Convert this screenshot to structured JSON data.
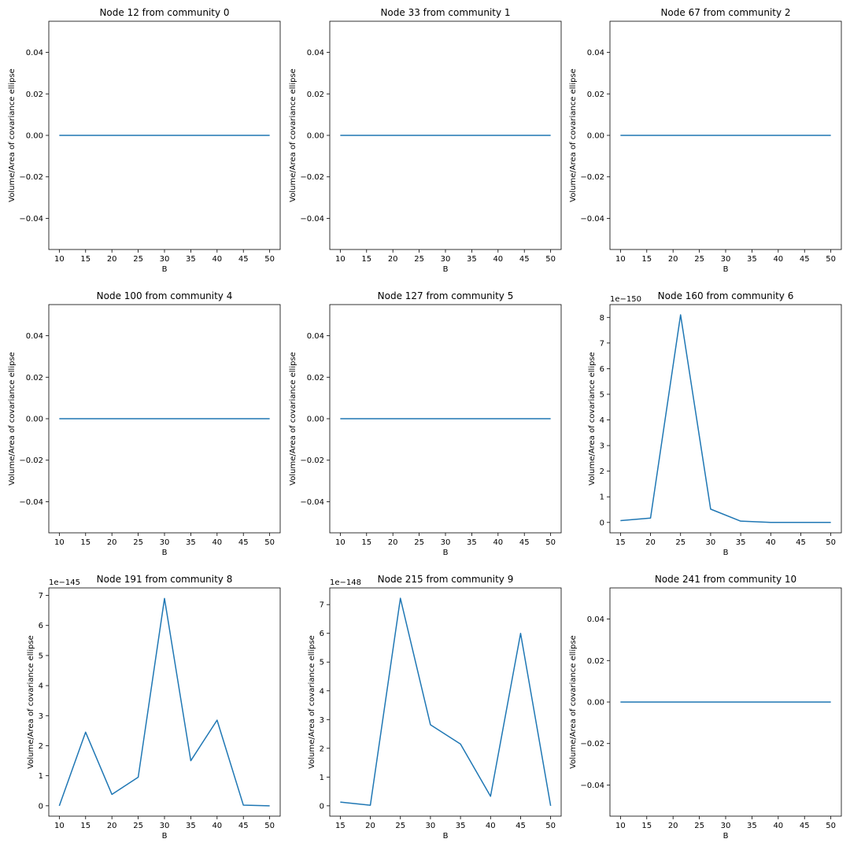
{
  "chart_data": [
    {
      "type": "line",
      "title": "Node 12 from community 0",
      "xlabel": "B",
      "ylabel": "Volume/Area of covariance ellipse",
      "x": [
        10,
        15,
        20,
        25,
        30,
        35,
        40,
        45,
        50
      ],
      "y": [
        0,
        0,
        0,
        0,
        0,
        0,
        0,
        0,
        0
      ],
      "xlim": [
        8.0,
        52.0
      ],
      "ylim": [
        -0.055,
        0.055
      ],
      "xticks": [
        10,
        15,
        20,
        25,
        30,
        35,
        40,
        45,
        50
      ],
      "yticks": [
        -0.04,
        -0.02,
        0.0,
        0.02,
        0.04
      ],
      "yticklabels": [
        "−0.04",
        "−0.02",
        "0.00",
        "0.02",
        "0.04"
      ],
      "offset_text": "",
      "grid": false
    },
    {
      "type": "line",
      "title": "Node 33 from community 1",
      "xlabel": "B",
      "ylabel": "Volume/Area of covariance ellipse",
      "x": [
        10,
        15,
        20,
        25,
        30,
        35,
        40,
        45,
        50
      ],
      "y": [
        0,
        0,
        0,
        0,
        0,
        0,
        0,
        0,
        0
      ],
      "xlim": [
        8.0,
        52.0
      ],
      "ylim": [
        -0.055,
        0.055
      ],
      "xticks": [
        10,
        15,
        20,
        25,
        30,
        35,
        40,
        45,
        50
      ],
      "yticks": [
        -0.04,
        -0.02,
        0.0,
        0.02,
        0.04
      ],
      "yticklabels": [
        "−0.04",
        "−0.02",
        "0.00",
        "0.02",
        "0.04"
      ],
      "offset_text": "",
      "grid": false
    },
    {
      "type": "line",
      "title": "Node 67 from community 2",
      "xlabel": "B",
      "ylabel": "Volume/Area of covariance ellipse",
      "x": [
        10,
        15,
        20,
        25,
        30,
        35,
        40,
        45,
        50
      ],
      "y": [
        0,
        0,
        0,
        0,
        0,
        0,
        0,
        0,
        0
      ],
      "xlim": [
        8.0,
        52.0
      ],
      "ylim": [
        -0.055,
        0.055
      ],
      "xticks": [
        10,
        15,
        20,
        25,
        30,
        35,
        40,
        45,
        50
      ],
      "yticks": [
        -0.04,
        -0.02,
        0.0,
        0.02,
        0.04
      ],
      "yticklabels": [
        "−0.04",
        "−0.02",
        "0.00",
        "0.02",
        "0.04"
      ],
      "offset_text": "",
      "grid": false
    },
    {
      "type": "line",
      "title": "Node 100 from community 4",
      "xlabel": "B",
      "ylabel": "Volume/Area of covariance ellipse",
      "x": [
        10,
        15,
        20,
        25,
        30,
        35,
        40,
        45,
        50
      ],
      "y": [
        0,
        0,
        0,
        0,
        0,
        0,
        0,
        0,
        0
      ],
      "xlim": [
        8.0,
        52.0
      ],
      "ylim": [
        -0.055,
        0.055
      ],
      "xticks": [
        10,
        15,
        20,
        25,
        30,
        35,
        40,
        45,
        50
      ],
      "yticks": [
        -0.04,
        -0.02,
        0.0,
        0.02,
        0.04
      ],
      "yticklabels": [
        "−0.04",
        "−0.02",
        "0.00",
        "0.02",
        "0.04"
      ],
      "offset_text": "",
      "grid": false
    },
    {
      "type": "line",
      "title": "Node 127 from community 5",
      "xlabel": "B",
      "ylabel": "Volume/Area of covariance ellipse",
      "x": [
        10,
        15,
        20,
        25,
        30,
        35,
        40,
        45,
        50
      ],
      "y": [
        0,
        0,
        0,
        0,
        0,
        0,
        0,
        0,
        0
      ],
      "xlim": [
        8.0,
        52.0
      ],
      "ylim": [
        -0.055,
        0.055
      ],
      "xticks": [
        10,
        15,
        20,
        25,
        30,
        35,
        40,
        45,
        50
      ],
      "yticks": [
        -0.04,
        -0.02,
        0.0,
        0.02,
        0.04
      ],
      "yticklabels": [
        "−0.04",
        "−0.02",
        "0.00",
        "0.02",
        "0.04"
      ],
      "offset_text": "",
      "grid": false
    },
    {
      "type": "line",
      "title": "Node 160 from community 6",
      "xlabel": "B",
      "ylabel": "Volume/Area of covariance ellipse",
      "x": [
        15,
        20,
        25,
        30,
        35,
        40,
        45,
        50
      ],
      "y": [
        0.07,
        0.17,
        8.1,
        0.52,
        0.05,
        0.0,
        0.0,
        0.0
      ],
      "xlim": [
        13.25,
        51.75
      ],
      "ylim": [
        -0.405,
        8.5
      ],
      "xticks": [
        15,
        20,
        25,
        30,
        35,
        40,
        45,
        50
      ],
      "yticks": [
        0,
        1,
        2,
        3,
        4,
        5,
        6,
        7,
        8
      ],
      "yticklabels": [
        "0",
        "1",
        "2",
        "3",
        "4",
        "5",
        "6",
        "7",
        "8"
      ],
      "offset_text": "1e−150",
      "grid": false
    },
    {
      "type": "line",
      "title": "Node 191 from community 8",
      "xlabel": "B",
      "ylabel": "Volume/Area of covariance ellipse",
      "x": [
        10,
        15,
        20,
        25,
        30,
        35,
        40,
        45,
        50
      ],
      "y": [
        0.0,
        2.45,
        0.38,
        0.95,
        6.9,
        1.5,
        2.85,
        0.02,
        0.0
      ],
      "xlim": [
        8.0,
        52.0
      ],
      "ylim": [
        -0.345,
        7.25
      ],
      "xticks": [
        10,
        15,
        20,
        25,
        30,
        35,
        40,
        45,
        50
      ],
      "yticks": [
        0,
        1,
        2,
        3,
        4,
        5,
        6,
        7
      ],
      "yticklabels": [
        "0",
        "1",
        "2",
        "3",
        "4",
        "5",
        "6",
        "7"
      ],
      "offset_text": "1e−145",
      "grid": false
    },
    {
      "type": "line",
      "title": "Node 215 from community 9",
      "xlabel": "B",
      "ylabel": "Volume/Area of covariance ellipse",
      "x": [
        15,
        20,
        25,
        30,
        35,
        40,
        45,
        50
      ],
      "y": [
        0.13,
        0.02,
        7.22,
        2.82,
        2.15,
        0.33,
        6.0,
        0.0
      ],
      "xlim": [
        13.25,
        51.75
      ],
      "ylim": [
        -0.36,
        7.58
      ],
      "xticks": [
        15,
        20,
        25,
        30,
        35,
        40,
        45,
        50
      ],
      "yticks": [
        0,
        1,
        2,
        3,
        4,
        5,
        6,
        7
      ],
      "yticklabels": [
        "0",
        "1",
        "2",
        "3",
        "4",
        "5",
        "6",
        "7"
      ],
      "offset_text": "1e−148",
      "grid": false
    },
    {
      "type": "line",
      "title": "Node 241 from community 10",
      "xlabel": "B",
      "ylabel": "Volume/Area of covariance ellipse",
      "x": [
        10,
        15,
        20,
        25,
        30,
        35,
        40,
        45,
        50
      ],
      "y": [
        0,
        0,
        0,
        0,
        0,
        0,
        0,
        0,
        0
      ],
      "xlim": [
        8.0,
        52.0
      ],
      "ylim": [
        -0.055,
        0.055
      ],
      "xticks": [
        10,
        15,
        20,
        25,
        30,
        35,
        40,
        45,
        50
      ],
      "yticks": [
        -0.04,
        -0.02,
        0.0,
        0.02,
        0.04
      ],
      "yticklabels": [
        "−0.04",
        "−0.02",
        "0.00",
        "0.02",
        "0.04"
      ],
      "offset_text": "",
      "grid": false
    }
  ],
  "colors": {
    "series": "#1f77b4",
    "axes": "#000000",
    "background": "#ffffff"
  }
}
